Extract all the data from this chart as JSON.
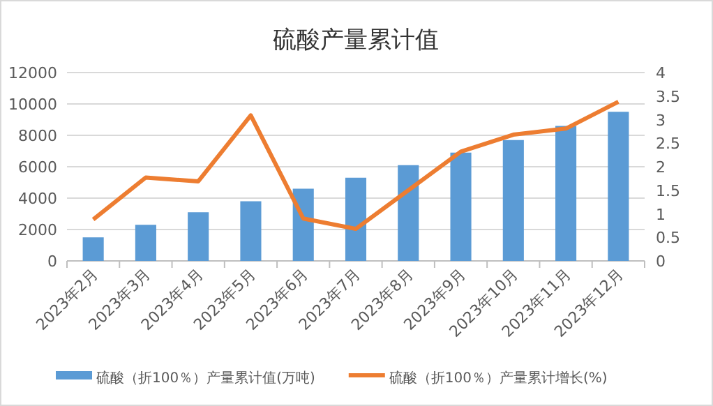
{
  "chart_data": {
    "type": "bar",
    "title": "硫酸产量累计值",
    "categories": [
      "2023年2月",
      "2023年3月",
      "2023年4月",
      "2023年5月",
      "2023年6月",
      "2023年7月",
      "2023年8月",
      "2023年9月",
      "2023年10月",
      "2023年11月",
      "2023年12月"
    ],
    "series": [
      {
        "name": "硫酸（折100％）产量累计值(万吨)",
        "color": "#5b9bd5",
        "values": [
          1500,
          2300,
          3100,
          3800,
          4600,
          5300,
          6100,
          6900,
          7700,
          8600,
          9500
        ]
      },
      {
        "name": "硫酸（折100％）产量累计增长(%)",
        "type": "line",
        "axis": "y2",
        "color": "#ed7d31",
        "values": [
          0.88,
          1.77,
          1.69,
          3.09,
          0.9,
          0.68,
          1.5,
          2.32,
          2.68,
          2.81,
          3.38
        ]
      }
    ],
    "ylim": [
      0,
      12000
    ],
    "yticks": [
      0,
      2000,
      4000,
      6000,
      8000,
      10000,
      12000
    ],
    "y2lim": [
      0,
      4
    ],
    "y2ticks": [
      0,
      0.5,
      1,
      1.5,
      2,
      2.5,
      3,
      3.5,
      4
    ],
    "grid": "y",
    "legend": "bottom"
  }
}
